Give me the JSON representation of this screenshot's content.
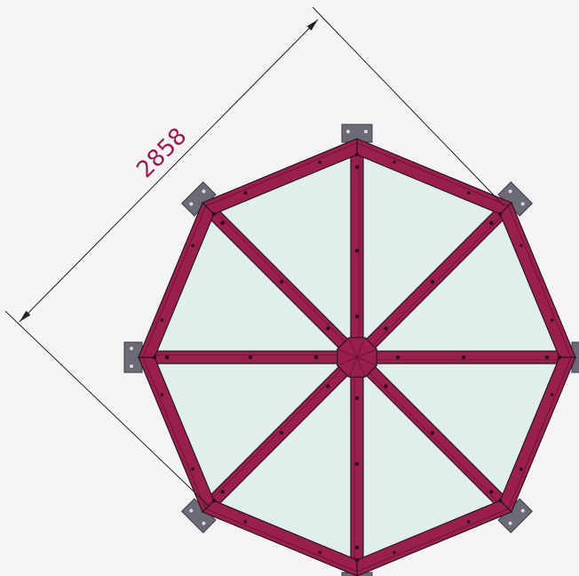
{
  "dimension": {
    "value_text": "2858",
    "color": "#9c1a4f"
  },
  "colors": {
    "background": "#f4f4f4",
    "frame": "#9b1f4e",
    "frame_outline": "#2a1520",
    "panel_fill": "#dff0ec",
    "bracket": "#6b6b78",
    "line": "#222222"
  },
  "structure": {
    "sides": 8,
    "rafters": 8,
    "kind": "octagonal roof frame, top view"
  }
}
